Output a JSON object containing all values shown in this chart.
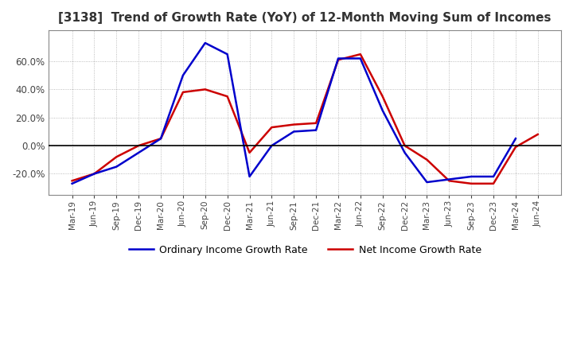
{
  "title": "[3138]  Trend of Growth Rate (YoY) of 12-Month Moving Sum of Incomes",
  "title_fontsize": 11,
  "legend_labels": [
    "Ordinary Income Growth Rate",
    "Net Income Growth Rate"
  ],
  "line_colors": [
    "#0000cc",
    "#cc0000"
  ],
  "background_color": "#ffffff",
  "x_labels": [
    "Mar-19",
    "Jun-19",
    "Sep-19",
    "Dec-19",
    "Mar-20",
    "Jun-20",
    "Sep-20",
    "Dec-20",
    "Mar-21",
    "Jun-21",
    "Sep-21",
    "Dec-21",
    "Mar-22",
    "Jun-22",
    "Sep-22",
    "Dec-22",
    "Mar-23",
    "Jun-23",
    "Sep-23",
    "Dec-23",
    "Mar-24",
    "Jun-24"
  ],
  "ordinary_income": [
    -0.27,
    -0.2,
    -0.15,
    -0.05,
    0.05,
    0.5,
    0.73,
    0.65,
    -0.22,
    0.0,
    0.1,
    0.11,
    0.62,
    0.62,
    0.25,
    -0.05,
    -0.26,
    -0.24,
    -0.22,
    -0.22,
    0.05,
    null
  ],
  "net_income": [
    -0.25,
    -0.2,
    -0.08,
    0.0,
    0.05,
    0.38,
    0.4,
    0.35,
    -0.05,
    0.13,
    0.15,
    0.16,
    0.61,
    0.65,
    0.35,
    0.0,
    -0.1,
    -0.25,
    -0.27,
    -0.27,
    -0.01,
    0.08
  ],
  "ylim": [
    -0.35,
    0.82
  ],
  "yticks": [
    -0.2,
    0.0,
    0.2,
    0.4,
    0.6
  ]
}
